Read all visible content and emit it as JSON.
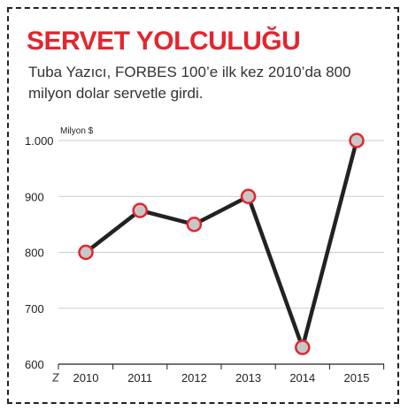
{
  "header": {
    "title": "SERVET YOLCULUĞU",
    "subtitle": "Tuba Yazıcı, FORBES 100’e ilk kez 2010’da 800 milyon dolar servetle girdi."
  },
  "chart_data": {
    "type": "line",
    "title": "SERVET YOLCULUĞU",
    "subtitle": "Tuba Yazıcı, FORBES 100’e ilk kez 2010’da 800 milyon dolar servetle girdi.",
    "ylabel": "Milyon $",
    "xlabel": "",
    "categories": [
      "2010",
      "2011",
      "2012",
      "2013",
      "2014",
      "2015"
    ],
    "values": [
      800,
      875,
      850,
      900,
      630,
      1000
    ],
    "ylim": [
      600,
      1000
    ],
    "yticks": [
      {
        "value": 600,
        "label": "600"
      },
      {
        "value": 700,
        "label": "700"
      },
      {
        "value": 800,
        "label": "800"
      },
      {
        "value": 900,
        "label": "900"
      },
      {
        "value": 1000,
        "label": "1.000"
      }
    ],
    "grid": true,
    "axis_break": true,
    "colors": {
      "line": "#222222",
      "marker_fill": "#c7c7c7",
      "marker_stroke": "#e2262f",
      "grid": "#c5cfd6",
      "title": "#e2262f"
    }
  }
}
